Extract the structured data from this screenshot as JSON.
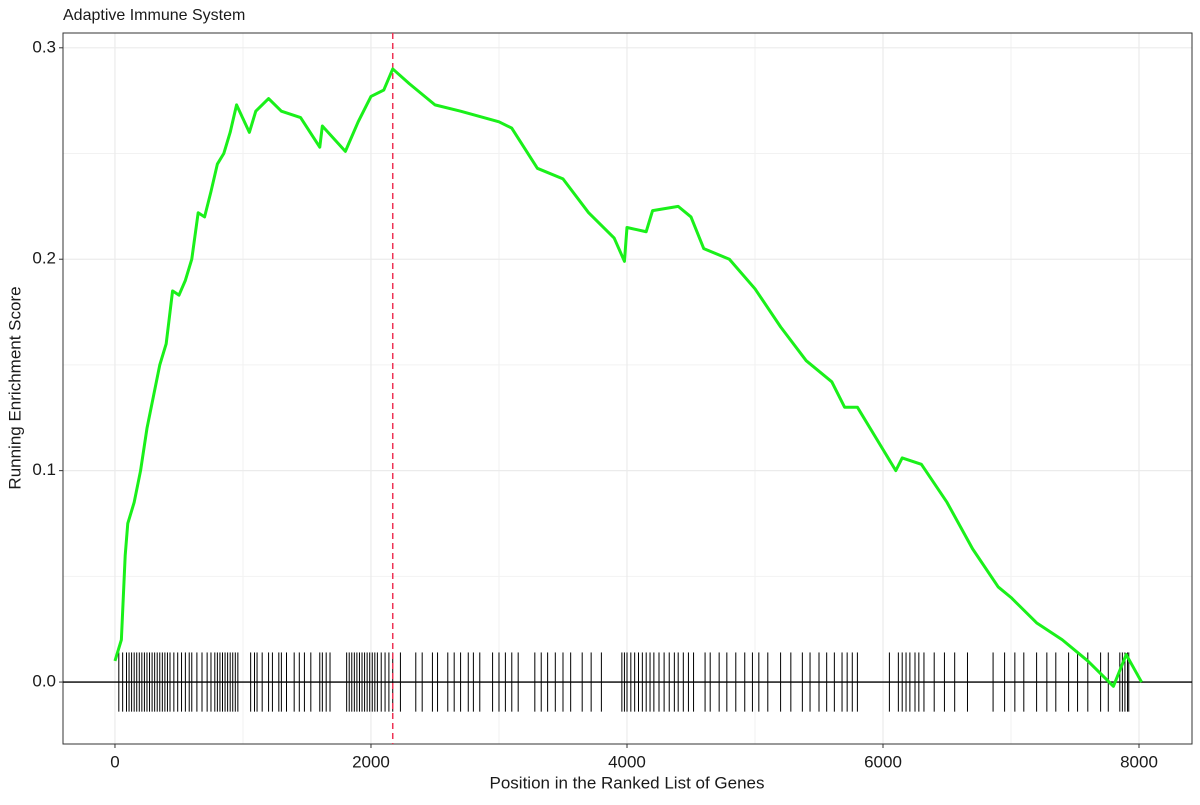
{
  "chart_data": {
    "type": "line",
    "title": "Adaptive Immune System",
    "xlabel": "Position in the Ranked List of Genes",
    "ylabel": "Running Enrichment Score",
    "x": [
      0,
      50,
      80,
      100,
      150,
      200,
      250,
      300,
      350,
      400,
      450,
      500,
      550,
      600,
      650,
      700,
      750,
      800,
      850,
      900,
      950,
      1050,
      1100,
      1200,
      1300,
      1450,
      1600,
      1620,
      1800,
      1900,
      2000,
      2100,
      2170,
      2300,
      2500,
      2700,
      3000,
      3100,
      3300,
      3500,
      3700,
      3900,
      3980,
      4000,
      4150,
      4200,
      4400,
      4500,
      4600,
      4800,
      5000,
      5200,
      5400,
      5600,
      5700,
      5800,
      6000,
      6100,
      6150,
      6300,
      6500,
      6700,
      6900,
      7000,
      7200,
      7400,
      7600,
      7800,
      7900,
      8020
    ],
    "series": [
      {
        "name": "Running Enrichment Score",
        "color": "#1af01a",
        "values": [
          0.01,
          0.02,
          0.06,
          0.075,
          0.085,
          0.1,
          0.12,
          0.135,
          0.15,
          0.16,
          0.185,
          0.183,
          0.19,
          0.2,
          0.222,
          0.22,
          0.232,
          0.245,
          0.25,
          0.26,
          0.273,
          0.26,
          0.27,
          0.276,
          0.27,
          0.267,
          0.253,
          0.263,
          0.251,
          0.265,
          0.277,
          0.28,
          0.29,
          0.283,
          0.273,
          0.27,
          0.265,
          0.262,
          0.243,
          0.238,
          0.222,
          0.21,
          0.199,
          0.215,
          0.213,
          0.223,
          0.225,
          0.22,
          0.205,
          0.2,
          0.186,
          0.168,
          0.152,
          0.142,
          0.13,
          0.13,
          0.11,
          0.1,
          0.106,
          0.103,
          0.085,
          0.063,
          0.045,
          0.04,
          0.028,
          0.02,
          0.01,
          -0.002,
          0.013,
          0.0
        ]
      }
    ],
    "hits": [
      30,
      60,
      90,
      110,
      130,
      150,
      170,
      190,
      210,
      230,
      250,
      270,
      290,
      310,
      330,
      350,
      370,
      390,
      410,
      430,
      460,
      490,
      520,
      550,
      580,
      600,
      640,
      680,
      720,
      750,
      780,
      800,
      820,
      840,
      860,
      880,
      900,
      920,
      940,
      960,
      1060,
      1090,
      1110,
      1150,
      1200,
      1230,
      1280,
      1300,
      1340,
      1400,
      1440,
      1480,
      1530,
      1600,
      1620,
      1650,
      1680,
      1810,
      1830,
      1850,
      1870,
      1890,
      1910,
      1930,
      1950,
      1970,
      1990,
      2010,
      2030,
      2050,
      2080,
      2110,
      2140,
      2170,
      2230,
      2350,
      2400,
      2480,
      2520,
      2600,
      2650,
      2700,
      2760,
      2800,
      2850,
      2950,
      3000,
      3050,
      3100,
      3150,
      3280,
      3330,
      3380,
      3440,
      3500,
      3560,
      3650,
      3720,
      3800,
      3960,
      3980,
      4000,
      4030,
      4060,
      4090,
      4120,
      4150,
      4180,
      4210,
      4250,
      4290,
      4330,
      4370,
      4400,
      4440,
      4480,
      4520,
      4610,
      4650,
      4720,
      4780,
      4850,
      4920,
      4980,
      5030,
      5100,
      5200,
      5280,
      5370,
      5430,
      5500,
      5560,
      5620,
      5680,
      5720,
      5760,
      5800,
      6050,
      6120,
      6150,
      6180,
      6210,
      6250,
      6280,
      6320,
      6400,
      6480,
      6560,
      6660,
      6860,
      6950,
      7030,
      7100,
      7200,
      7280,
      7350,
      7450,
      7520,
      7600,
      7700,
      7760,
      7850,
      7870,
      7890,
      7910,
      7920
    ],
    "hits_color": "#000000",
    "vline": 2170,
    "vline_color": "#ee3355",
    "hline": 0,
    "xlim": [
      -406,
      8414
    ],
    "ylim": [
      -0.0293,
      0.307
    ],
    "xticks": [
      0,
      2000,
      4000,
      6000,
      8000
    ],
    "yticks": [
      {
        "value": 0,
        "label": "0.0"
      },
      0.1,
      0.2,
      0.3
    ],
    "grid": true
  }
}
